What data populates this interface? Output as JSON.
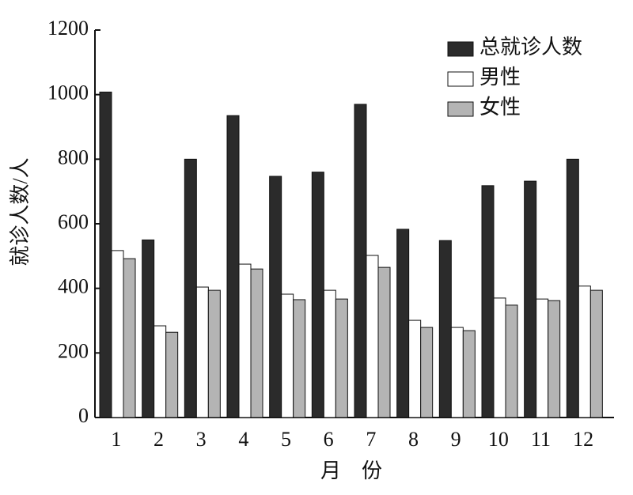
{
  "chart_data": {
    "type": "bar",
    "xlabel": "月　份",
    "ylabel": "就诊人数/人",
    "categories": [
      "1",
      "2",
      "3",
      "4",
      "5",
      "6",
      "7",
      "8",
      "9",
      "10",
      "11",
      "12"
    ],
    "series": [
      {
        "name": "总就诊人数",
        "color": "#2b2b2b",
        "values": [
          1008,
          550,
          800,
          935,
          747,
          760,
          970,
          583,
          548,
          718,
          732,
          800
        ]
      },
      {
        "name": "男性",
        "color": "#ffffff",
        "values": [
          517,
          284,
          404,
          475,
          382,
          394,
          502,
          301,
          279,
          370,
          367,
          407
        ]
      },
      {
        "name": "女性",
        "color": "#b4b4b4",
        "values": [
          492,
          264,
          394,
          460,
          365,
          367,
          465,
          279,
          269,
          348,
          362,
          394
        ]
      }
    ],
    "ylim": [
      0,
      1200
    ],
    "yticks": [
      0,
      200,
      400,
      600,
      800,
      1000,
      1200
    ],
    "legend": "top-right"
  }
}
